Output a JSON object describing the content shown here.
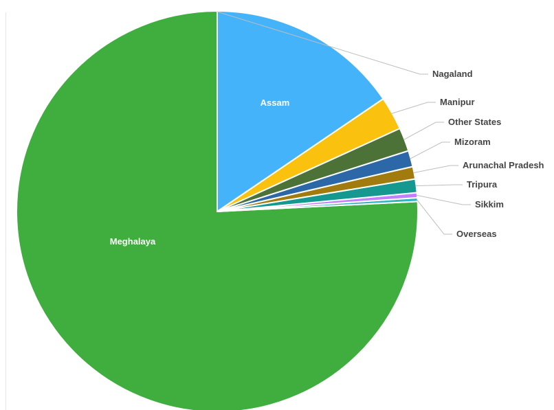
{
  "chart_data": {
    "type": "pie",
    "title": "",
    "start_angle_deg": 90,
    "direction": "counterclockwise",
    "label_color_inside": "#ffffff",
    "label_color_outside": "#444444",
    "leader_line_color": "#bdbdbd",
    "slice_border_color": "#ffffff",
    "slices": [
      {
        "name": "Meghalaya",
        "value": 75.8,
        "color": "#3fae3f",
        "label_position": "inside"
      },
      {
        "name": "Overseas",
        "value": 0.3,
        "color": "#2fb5c0",
        "label_position": "outside"
      },
      {
        "name": "Sikkim",
        "value": 0.4,
        "color": "#c080ff",
        "label_position": "outside"
      },
      {
        "name": "Tripura",
        "value": 1.1,
        "color": "#14988f",
        "label_position": "outside"
      },
      {
        "name": "Arunachal Pradesh",
        "value": 1.0,
        "color": "#a17b0e",
        "label_position": "outside"
      },
      {
        "name": "Mizoram",
        "value": 1.3,
        "color": "#2c68a8",
        "label_position": "outside"
      },
      {
        "name": "Other States",
        "value": 1.9,
        "color": "#4d7238",
        "label_position": "outside"
      },
      {
        "name": "Manipur",
        "value": 2.7,
        "color": "#fbc10f",
        "label_position": "outside"
      },
      {
        "name": "Assam",
        "value": 15.5,
        "color": "#45b3fa",
        "label_position": "inside"
      },
      {
        "name": "Nagaland",
        "value": 0.0,
        "color": "#888888",
        "label_position": "outside"
      }
    ]
  }
}
